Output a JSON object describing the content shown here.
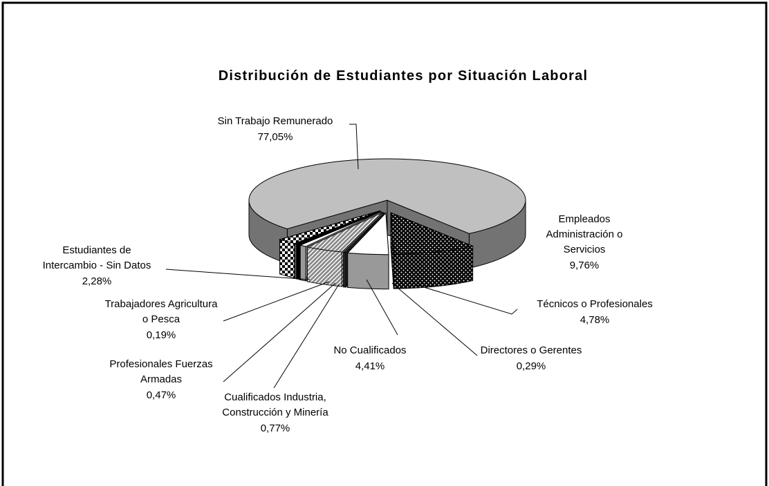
{
  "chart_data": {
    "type": "pie3d",
    "title": "Distribución de Estudiantes por Situación Laboral",
    "categories": [
      "Sin Trabajo Remunerado",
      "Empleados Administración o Servicios",
      "Técnicos o Profesionales",
      "Directores o Gerentes",
      "No Cualificados",
      "Cualificados Industria, Construcción y Minería",
      "Profesionales Fuerzas Armadas",
      "Trabajadores Agricultura o Pesca",
      "Estudiantes de Intercambio - Sin Datos"
    ],
    "values": [
      77.05,
      9.76,
      4.78,
      0.29,
      4.41,
      0.77,
      0.47,
      0.19,
      2.28
    ],
    "value_labels": [
      "77,05%",
      "9,76%",
      "4,78%",
      "0,29%",
      "4,41%",
      "0,77%",
      "0,47%",
      "0,19%",
      "2,28%"
    ],
    "colors": [
      "#c0c0c0",
      "#000000",
      "#ffffff",
      "#404040",
      "#808080",
      "#ffffff",
      "#000000",
      "#ffffff",
      "#000000"
    ],
    "patterns": [
      "none",
      "dots",
      "none",
      "none",
      "hatch",
      "none",
      "none",
      "none",
      "checker"
    ]
  }
}
